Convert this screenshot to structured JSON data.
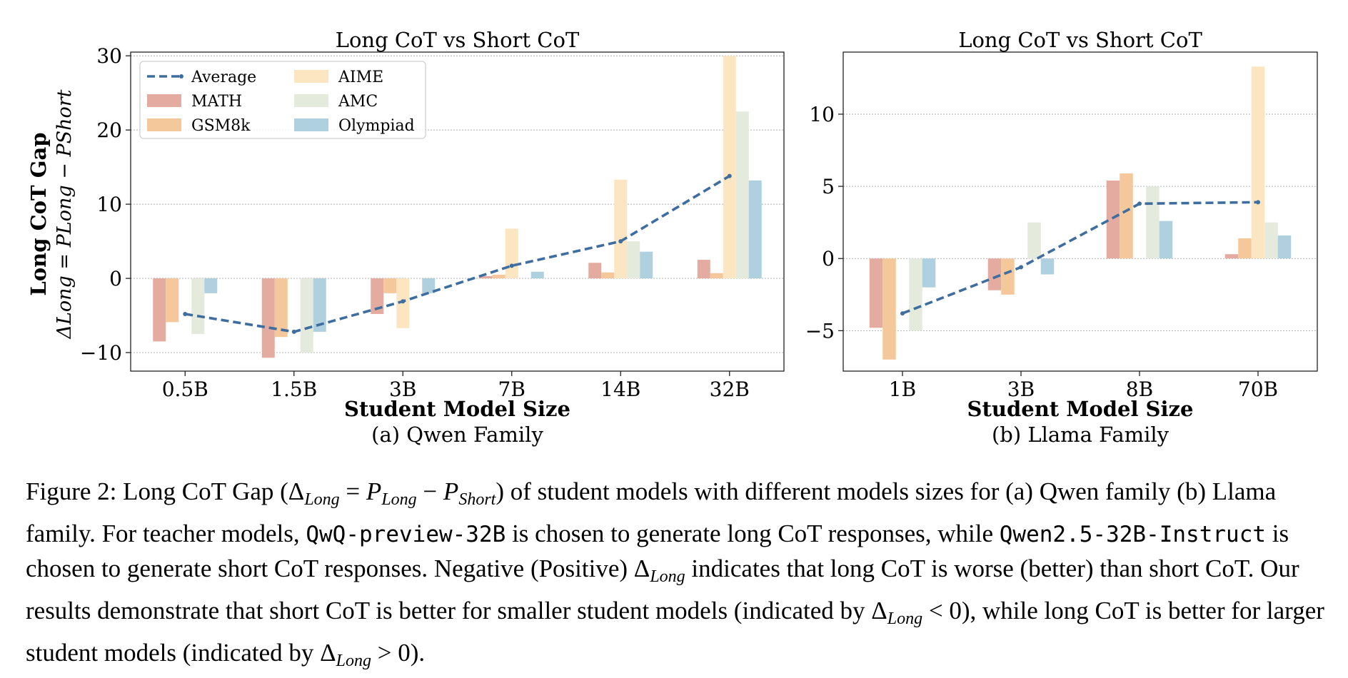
{
  "chart_data": [
    {
      "type": "bar",
      "title": "Long CoT vs Short CoT",
      "xlabel": "Student Model Size",
      "ylabel": "Long CoT Gap",
      "ylabel_formula": "ΔLong = PLong − PShort",
      "subtitle": "(a) Qwen Family",
      "categories": [
        "0.5B",
        "1.5B",
        "3B",
        "7B",
        "14B",
        "32B"
      ],
      "ylim": [
        -12.5,
        30.5
      ],
      "yticks": [
        -10,
        0,
        10,
        20,
        30
      ],
      "ytick_labels": [
        "−10",
        "0",
        "10",
        "20",
        "30"
      ],
      "grid": true,
      "legend_position": "top-left",
      "series": [
        {
          "name": "MATH",
          "values": [
            -8.5,
            -10.7,
            -4.8,
            0.3,
            2.1,
            2.5
          ]
        },
        {
          "name": "GSM8k",
          "values": [
            -5.9,
            -7.9,
            -2.0,
            0.5,
            0.8,
            0.7
          ]
        },
        {
          "name": "AIME",
          "values": [
            0.0,
            0.0,
            -6.7,
            6.7,
            13.3,
            30.0
          ]
        },
        {
          "name": "AMC",
          "values": [
            -7.5,
            -10.0,
            0.0,
            0.0,
            5.0,
            22.5
          ]
        },
        {
          "name": "Olympiad",
          "values": [
            -2.0,
            -7.2,
            -2.0,
            0.9,
            3.6,
            13.2
          ]
        },
        {
          "name": "Average",
          "type": "line",
          "values": [
            -4.8,
            -7.2,
            -3.1,
            1.7,
            5.0,
            13.8
          ]
        }
      ]
    },
    {
      "type": "bar",
      "title": "Long CoT vs Short CoT",
      "xlabel": "Student Model Size",
      "subtitle": "(b) Llama Family",
      "categories": [
        "1B",
        "3B",
        "8B",
        "70B"
      ],
      "ylim": [
        -7.8,
        14.3
      ],
      "yticks": [
        -5,
        0,
        5,
        10
      ],
      "ytick_labels": [
        "−5",
        "0",
        "5",
        "10"
      ],
      "grid": true,
      "series": [
        {
          "name": "MATH",
          "values": [
            -4.8,
            -2.2,
            5.4,
            0.3
          ]
        },
        {
          "name": "GSM8k",
          "values": [
            -7.0,
            -2.5,
            5.9,
            1.4
          ]
        },
        {
          "name": "AIME",
          "values": [
            0.0,
            0.0,
            0.0,
            13.3
          ]
        },
        {
          "name": "AMC",
          "values": [
            -5.0,
            2.5,
            5.0,
            2.5
          ]
        },
        {
          "name": "Olympiad",
          "values": [
            -2.0,
            -1.1,
            2.6,
            1.6
          ]
        },
        {
          "name": "Average",
          "type": "line",
          "values": [
            -3.8,
            -0.6,
            3.8,
            3.9
          ]
        }
      ]
    }
  ],
  "colors": {
    "MATH": "#e4aba0",
    "GSM8k": "#f5c89c",
    "AIME": "#fce6c2",
    "AMC": "#e4eadc",
    "Olympiad": "#afd0df",
    "Average": "#3e6e9f"
  },
  "caption": {
    "fig_label": "Figure 2:",
    "t1": " Long CoT Gap (",
    "f1_delta": "Δ",
    "f1_sub1": "Long",
    "f1_eq": " = ",
    "f1_p1": "P",
    "f1_sub2": "Long",
    "f1_minus": " − ",
    "f1_p2": "P",
    "f1_sub3": "Short",
    "t2": ") of student models with different models sizes for (a) Qwen family (b) Llama family. For teacher models, ",
    "code1": "QwQ-preview-32B",
    "t3": " is chosen to generate long CoT responses, while ",
    "code2": "Qwen2.5-32B-Instruct",
    "t4": " is chosen to generate short CoT responses. Negative (Positive) ",
    "d2": "Δ",
    "d2_sub": "Long",
    "t5": " indicates that long CoT is worse (better) than short CoT. Our results demonstrate that short CoT is better for smaller student models (indicated by ",
    "d3": "Δ",
    "d3_sub": "Long",
    "t6": " < 0), while long CoT is better for larger student models (indicated by ",
    "d4": "Δ",
    "d4_sub": "Long",
    "t7": " > 0)."
  }
}
